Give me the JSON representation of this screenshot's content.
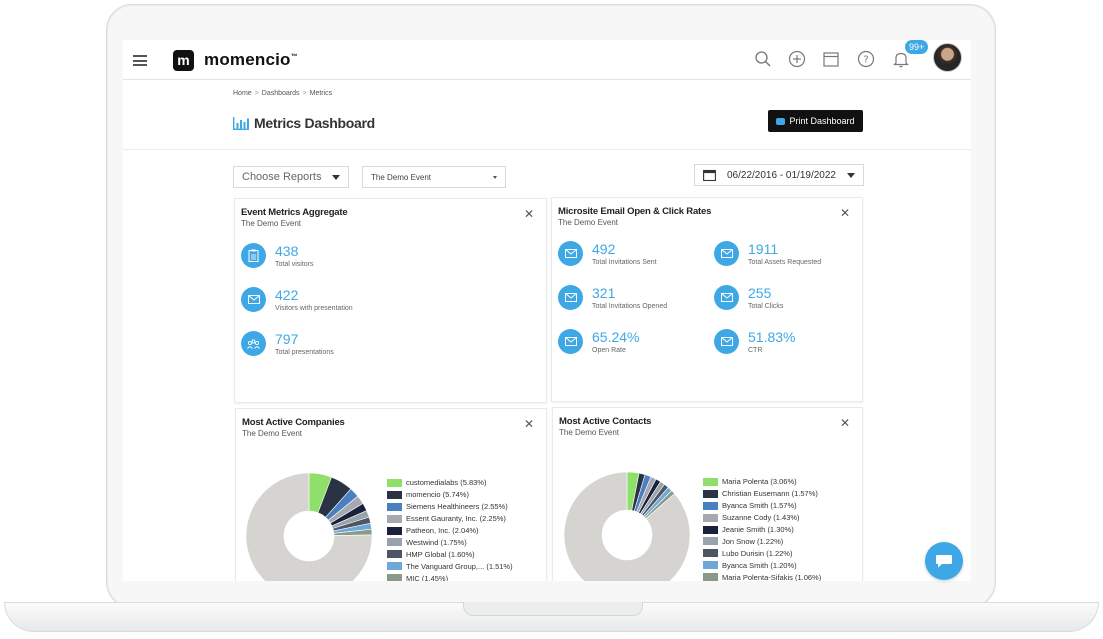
{
  "app": {
    "logo_letter": "m",
    "brand": "momencio",
    "brand_tm": "™"
  },
  "topbar": {
    "notification_count": "99+"
  },
  "breadcrumb": [
    "Home",
    "Dashboards",
    "Metrics"
  ],
  "page_title": "Metrics Dashboard",
  "print_button": "Print Dashboard",
  "filters": {
    "choose_reports": "Choose Reports",
    "event": "The Demo Event",
    "date_range": "06/22/2016 - 01/19/2022"
  },
  "colors": {
    "accent": "#3ea8e6",
    "dark": "#111111"
  },
  "cards": {
    "event_metrics": {
      "title": "Event Metrics Aggregate",
      "subtitle": "The Demo Event",
      "metrics": [
        {
          "value": "438",
          "label": "Total visitors",
          "icon": "clipboard-icon"
        },
        {
          "value": "422",
          "label": "Visitors with presentation",
          "icon": "envelope-icon"
        },
        {
          "value": "797",
          "label": "Total presentations",
          "icon": "presentation-icon"
        }
      ]
    },
    "email_rates": {
      "title": "Microsite Email Open & Click Rates",
      "subtitle": "The Demo Event",
      "metrics": [
        {
          "value": "492",
          "label": "Total Invitations Sent"
        },
        {
          "value": "1911",
          "label": "Total Assets Requested"
        },
        {
          "value": "321",
          "label": "Total Invitations Opened"
        },
        {
          "value": "255",
          "label": "Total Clicks"
        },
        {
          "value": "65.24%",
          "label": "Open Rate"
        },
        {
          "value": "51.83%",
          "label": "CTR"
        }
      ]
    },
    "active_companies": {
      "title": "Most Active Companies",
      "subtitle": "The Demo Event"
    },
    "active_contacts": {
      "title": "Most Active Contacts",
      "subtitle": "The Demo Event"
    }
  },
  "chart_data": [
    {
      "type": "pie",
      "title": "Most Active Companies",
      "subtitle": "The Demo Event",
      "legend_position": "right",
      "categories": [
        "customedialabs",
        "momencio",
        "Siemens Healthineers",
        "Essent Gauranty, Inc.",
        "Patheon, Inc.",
        "Westwind",
        "HMP Global",
        "The Vanguard Group,...",
        "MIC"
      ],
      "labels": [
        "customedialabs (5.83%)",
        "momencio (5.74%)",
        "Siemens Healthineers (2.55%)",
        "Essent Gauranty, Inc. (2.25%)",
        "Patheon, Inc. (2.04%)",
        "Westwind (1.75%)",
        "HMP Global (1.60%)",
        "The Vanguard Group,... (1.51%)",
        "MIC (1.45%)"
      ],
      "values": [
        5.83,
        5.74,
        2.55,
        2.25,
        2.04,
        1.75,
        1.6,
        1.51,
        1.45
      ],
      "colors": [
        "#8fe06a",
        "#2a3343",
        "#4a7fc1",
        "#a7a9b0",
        "#19223a",
        "#9aa3ad",
        "#4d5662",
        "#6ea8d8",
        "#8a9a8a"
      ],
      "remainder_color": "#d6d4d0"
    },
    {
      "type": "pie",
      "title": "Most Active Contacts",
      "subtitle": "The Demo Event",
      "legend_position": "right",
      "categories": [
        "Maria Polenta",
        "Christian Eusemann",
        "Byanca Smith",
        "Suzanne Cody",
        "Jeanie Smith",
        "Jon Snow",
        "Lubo Durisin",
        "Byanca Smith",
        "Maria Polenta-Sifakis"
      ],
      "labels": [
        "Maria Polenta (3.06%)",
        "Christian Eusemann (1.57%)",
        "Byanca Smith (1.57%)",
        "Suzanne Cody (1.43%)",
        "Jeanie Smith (1.30%)",
        "Jon Snow (1.22%)",
        "Lubo Durisin (1.22%)",
        "Byanca Smith (1.20%)",
        "Maria Polenta-Sifakis (1.06%)"
      ],
      "values": [
        3.06,
        1.57,
        1.57,
        1.43,
        1.3,
        1.22,
        1.22,
        1.2,
        1.06
      ],
      "colors": [
        "#8fe06a",
        "#2a3343",
        "#4a7fc1",
        "#a7a9b0",
        "#19223a",
        "#9aa3ad",
        "#4d5662",
        "#6ea8d8",
        "#8a9a8a"
      ],
      "remainder_color": "#d6d4d0"
    }
  ]
}
